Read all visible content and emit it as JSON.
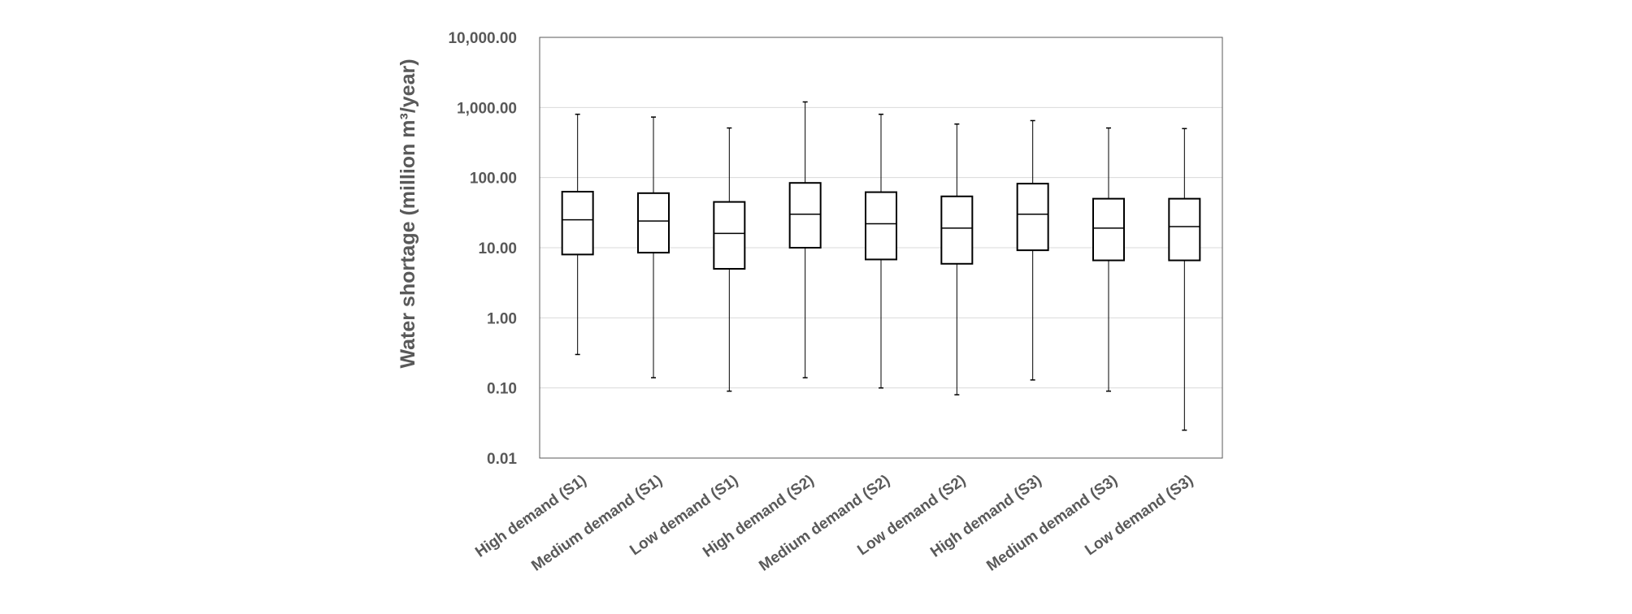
{
  "chart_data": {
    "type": "boxplot",
    "title": "",
    "xlabel": "",
    "ylabel": "Water shortage (million m³/year)",
    "yscale": "log",
    "ylim": [
      0.01,
      10000
    ],
    "yticks": [
      "0.01",
      "0.10",
      "1.00",
      "10.00",
      "100.00",
      "1,000.00",
      "10,000.00"
    ],
    "ytick_values": [
      0.01,
      0.1,
      1,
      10,
      100,
      1000,
      10000
    ],
    "grid": "horizontal",
    "categories": [
      "High demand (S1)",
      "Medium demand (S1)",
      "Low demand (S1)",
      "High demand (S2)",
      "Medium demand (S2)",
      "Low demand (S2)",
      "High demand (S3)",
      "Medium demand (S3)",
      "Low demand (S3)"
    ],
    "boxes": [
      {
        "min": 0.3,
        "q1": 8.0,
        "median": 25,
        "q3": 63,
        "max": 800
      },
      {
        "min": 0.14,
        "q1": 8.5,
        "median": 24,
        "q3": 60,
        "max": 730
      },
      {
        "min": 0.09,
        "q1": 5.0,
        "median": 16,
        "q3": 45,
        "max": 510
      },
      {
        "min": 0.14,
        "q1": 10,
        "median": 30,
        "q3": 84,
        "max": 1200
      },
      {
        "min": 0.1,
        "q1": 6.8,
        "median": 22,
        "q3": 62,
        "max": 800
      },
      {
        "min": 0.08,
        "q1": 5.9,
        "median": 19,
        "q3": 54,
        "max": 580
      },
      {
        "min": 0.13,
        "q1": 9.2,
        "median": 30,
        "q3": 82,
        "max": 650
      },
      {
        "min": 0.09,
        "q1": 6.6,
        "median": 19,
        "q3": 50,
        "max": 510
      },
      {
        "min": 0.025,
        "q1": 6.6,
        "median": 20,
        "q3": 50,
        "max": 500
      }
    ]
  }
}
